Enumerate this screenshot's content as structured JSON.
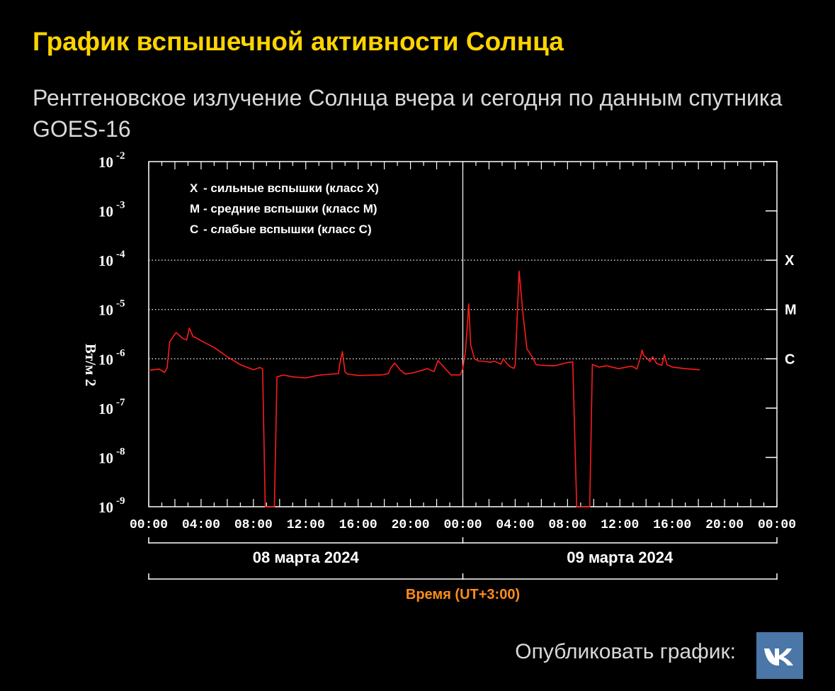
{
  "header": {
    "title": "График вспышечной активности Солнца",
    "subtitle": "Рентгеновское излучение Солнца вчера и сегодня по данным спутника GOES-16"
  },
  "footer": {
    "publish_label": "Опубликовать график:",
    "vk_icon": "vk-logo-icon",
    "vk_color": "#4a76a8"
  },
  "chart_data": {
    "type": "line",
    "scale": "log",
    "ylabel": "Вт/м 2",
    "xlabel": "Время (UT+3:00)",
    "ylim": [
      1e-09,
      0.01
    ],
    "y_ticks": [
      {
        "base": "10",
        "exp": "-2",
        "value": 0.01
      },
      {
        "base": "10",
        "exp": "-3",
        "value": 0.001
      },
      {
        "base": "10",
        "exp": "-4",
        "value": 0.0001
      },
      {
        "base": "10",
        "exp": "-5",
        "value": 1e-05
      },
      {
        "base": "10",
        "exp": "-6",
        "value": 1e-06
      },
      {
        "base": "10",
        "exp": "-7",
        "value": 1e-07
      },
      {
        "base": "10",
        "exp": "-8",
        "value": 1e-08
      },
      {
        "base": "10",
        "exp": "-9",
        "value": 1e-09
      }
    ],
    "x_range_hours": [
      0,
      48
    ],
    "x_ticks": [
      {
        "label": "00:00",
        "hour": 0
      },
      {
        "label": "04:00",
        "hour": 4
      },
      {
        "label": "08:00",
        "hour": 8
      },
      {
        "label": "12:00",
        "hour": 12
      },
      {
        "label": "16:00",
        "hour": 16
      },
      {
        "label": "20:00",
        "hour": 20
      },
      {
        "label": "00:00",
        "hour": 24
      },
      {
        "label": "04:00",
        "hour": 28
      },
      {
        "label": "08:00",
        "hour": 32
      },
      {
        "label": "12:00",
        "hour": 36
      },
      {
        "label": "16:00",
        "hour": 40
      },
      {
        "label": "20:00",
        "hour": 44
      },
      {
        "label": "00:00",
        "hour": 48
      }
    ],
    "day_labels": [
      {
        "label": "08 марта 2024",
        "start": 0,
        "end": 24
      },
      {
        "label": "09 марта 2024",
        "start": 24,
        "end": 48
      }
    ],
    "class_levels": [
      {
        "label": "X",
        "value": 0.0001
      },
      {
        "label": "M",
        "value": 1e-05
      },
      {
        "label": "C",
        "value": 1e-06
      }
    ],
    "legend": [
      {
        "key": "X",
        "text": "- сильные вспышки (класс X)"
      },
      {
        "key": "M",
        "text": "- средние вспышки (класс M)"
      },
      {
        "key": "C",
        "text": "- слабые вспышки (класс C)"
      }
    ],
    "legend_position": "top-left",
    "grid": "dotted at class levels",
    "colors": {
      "series": "#ff1a1a",
      "axes": "#ffffff",
      "xlabel": "#ff8c1a"
    },
    "series": [
      {
        "x": [
          0,
          0.8,
          1.1,
          1.2,
          1.4,
          1.6,
          1.9,
          2.1,
          2.6,
          2.9,
          3.1,
          3.4,
          3.6,
          3.9,
          5,
          6,
          7,
          8,
          8.5,
          8.7,
          8.9,
          9.2,
          9.3,
          9.6,
          9.8,
          10.3,
          11,
          12,
          12.9,
          13.5,
          14.5,
          14.6,
          14.8,
          15,
          15.2,
          16,
          17.8,
          18.3,
          18.5,
          18.8,
          19.2,
          19.6,
          20.2,
          21.3,
          21.8,
          22.1,
          23.1,
          23.8,
          24,
          24.2,
          24.35,
          24.45,
          24.6,
          24.9,
          25.2,
          25.5,
          26.1,
          26.4,
          26.9,
          27.1,
          27.4,
          27.6,
          27.9,
          28,
          28.3,
          28.6,
          28.9,
          29.3,
          29.6,
          30,
          31,
          32,
          32.4,
          32.7,
          33.2,
          33.7,
          33.9,
          34.4,
          35,
          35.9,
          36.9,
          37.3,
          37.5,
          37.7,
          37.8,
          38.1,
          38.3,
          38.5,
          38.8,
          39.2,
          39.4,
          39.6,
          40,
          41,
          42.1
        ],
        "y": [
          5.8e-07,
          6.2e-07,
          5.5e-07,
          5.3e-07,
          6.5e-07,
          2.2e-06,
          2.9e-06,
          3.4e-06,
          2.6e-06,
          2.4e-06,
          4.2e-06,
          2.8e-06,
          2.7e-06,
          2.4e-06,
          1.7e-06,
          1.1e-06,
          7.6e-07,
          6e-07,
          6.7e-07,
          6.2e-07,
          1e-09,
          1e-09,
          1e-09,
          1e-09,
          4.3e-07,
          4.7e-07,
          4.3e-07,
          4.1e-07,
          4.6e-07,
          4.8e-07,
          5e-07,
          8e-07,
          1.4e-06,
          5.4e-07,
          4.9e-07,
          4.6e-07,
          4.7e-07,
          5e-07,
          6.6e-07,
          8.2e-07,
          6e-07,
          4.9e-07,
          5.2e-07,
          6.3e-07,
          5.5e-07,
          9.2e-07,
          4.7e-07,
          4.7e-07,
          6.4e-07,
          1.4e-06,
          5.2e-06,
          1.3e-05,
          1.9e-06,
          1e-06,
          9e-07,
          9e-07,
          8.5e-07,
          9e-07,
          7.8e-07,
          1e-06,
          7.8e-07,
          7e-07,
          6.4e-07,
          7.4e-07,
          6e-05,
          8e-06,
          1.6e-06,
          1.1e-06,
          7.6e-07,
          7.4e-07,
          7.2e-07,
          8.4e-07,
          8.7e-07,
          1e-09,
          1e-09,
          1e-09,
          7.7e-07,
          6.8e-07,
          7.2e-07,
          6.3e-07,
          7.1e-07,
          6.2e-07,
          9.2e-07,
          1.5e-06,
          1.2e-06,
          1e-06,
          8.8e-07,
          1.1e-06,
          8.1e-07,
          7.4e-07,
          1.2e-06,
          7.6e-07,
          6.8e-07,
          6.3e-07,
          6e-07
        ]
      }
    ]
  }
}
